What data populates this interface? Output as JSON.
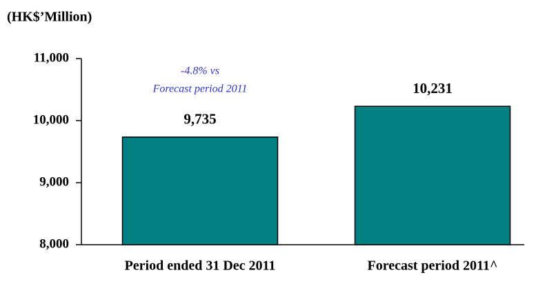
{
  "chart_data": {
    "type": "bar",
    "title": "(HK$’Million)",
    "categories": [
      "Period ended 31 Dec 2011",
      "Forecast period 2011^"
    ],
    "values": [
      9735,
      10231
    ],
    "value_labels": [
      "9,735",
      "10,231"
    ],
    "color": "#008080",
    "annotation": [
      "-4.8% vs",
      "Forecast period 2011"
    ],
    "ylim": [
      8000,
      11000
    ],
    "yticks": [
      {
        "value": 8000,
        "label": "8,000"
      },
      {
        "value": 9000,
        "label": "9,000"
      },
      {
        "value": 10000,
        "label": "10,000"
      },
      {
        "value": 11000,
        "label": "11,000"
      }
    ],
    "grid": false
  }
}
